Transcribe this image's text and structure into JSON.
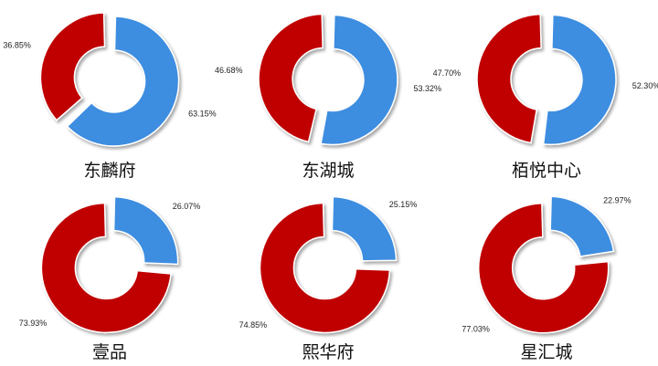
{
  "colors": {
    "blue": "#3d8de0",
    "red": "#c00000"
  },
  "chart_data": [
    {
      "type": "pie",
      "title": "东麟府",
      "slices": [
        {
          "value": 63.15,
          "label": "63.15%",
          "color": "#3d8de0"
        },
        {
          "value": 36.85,
          "label": "36.85%",
          "color": "#c00000"
        }
      ]
    },
    {
      "type": "pie",
      "title": "东湖城",
      "slices": [
        {
          "value": 53.32,
          "label": "53.32%",
          "color": "#3d8de0"
        },
        {
          "value": 46.68,
          "label": "46.68%",
          "color": "#c00000"
        }
      ]
    },
    {
      "type": "pie",
      "title": "栢悦中心",
      "slices": [
        {
          "value": 52.3,
          "label": "52.30%",
          "color": "#3d8de0"
        },
        {
          "value": 47.7,
          "label": "47.70%",
          "color": "#c00000"
        }
      ]
    },
    {
      "type": "pie",
      "title": "壹品",
      "slices": [
        {
          "value": 26.07,
          "label": "26.07%",
          "color": "#3d8de0"
        },
        {
          "value": 73.93,
          "label": "73.93%",
          "color": "#c00000"
        }
      ]
    },
    {
      "type": "pie",
      "title": "熙华府",
      "slices": [
        {
          "value": 25.15,
          "label": "25.15%",
          "color": "#3d8de0"
        },
        {
          "value": 74.85,
          "label": "74.85%",
          "color": "#c00000"
        }
      ]
    },
    {
      "type": "pie",
      "title": "星汇城",
      "slices": [
        {
          "value": 22.97,
          "label": "22.97%",
          "color": "#3d8de0"
        },
        {
          "value": 77.03,
          "label": "77.03%",
          "color": "#c00000"
        }
      ]
    }
  ]
}
